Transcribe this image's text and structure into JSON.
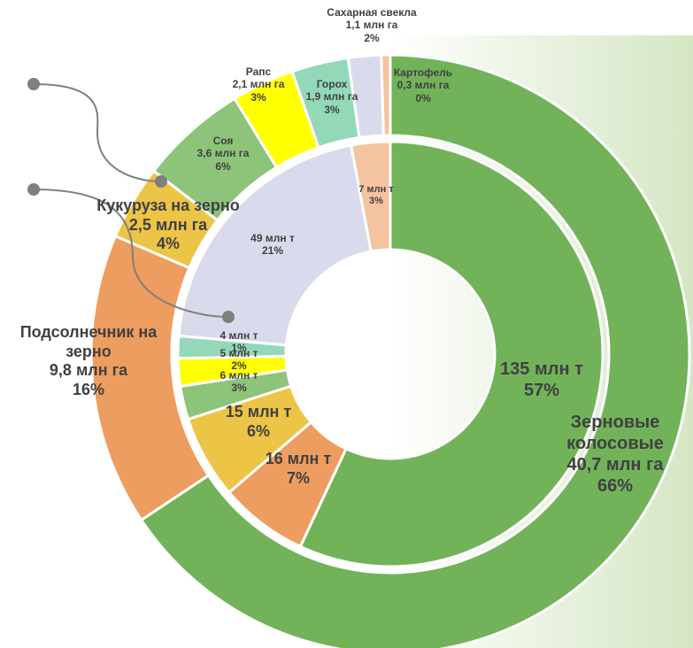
{
  "chart_data": {
    "type": "donut",
    "categories": [
      "Зерновые колосовые",
      "Подсолнечник на зерно",
      "Кукуруза на зерно",
      "Соя",
      "Рапс",
      "Горох",
      "Сахарная свекла",
      "Картофель"
    ],
    "colors": [
      "#72b35a",
      "#ed9d5f",
      "#ecc546",
      "#8cc47a",
      "#ffff00",
      "#93d9b9",
      "#d9dbec",
      "#f4c3a0"
    ],
    "series": [
      {
        "values": [
          40.7,
          9.8,
          2.5,
          3.6,
          2.1,
          1.9,
          1.1,
          0.3
        ],
        "value_labels": [
          "40,7 млн га",
          "9,8 млн га",
          "2,5 млн га",
          "3,6 млн га",
          "2,1 млн га",
          "1,9 млн га",
          "1,1 млн га",
          "0,3 млн га"
        ],
        "percent_labels": [
          "66%",
          "16%",
          "4%",
          "6%",
          "3%",
          "3%",
          "2%",
          "0%"
        ]
      },
      {
        "values": [
          135,
          16,
          15,
          6,
          5,
          4,
          49,
          7
        ],
        "value_labels": [
          "135 млн т",
          "16 млн т",
          "15 млн т",
          "6 млн т",
          "5 млн т",
          "4 млн т",
          "49 млн т",
          "7 млн т"
        ],
        "percent_labels": [
          "57%",
          "7%",
          "6%",
          "3%",
          "2%",
          "1%",
          "21%",
          "3%"
        ]
      }
    ]
  }
}
